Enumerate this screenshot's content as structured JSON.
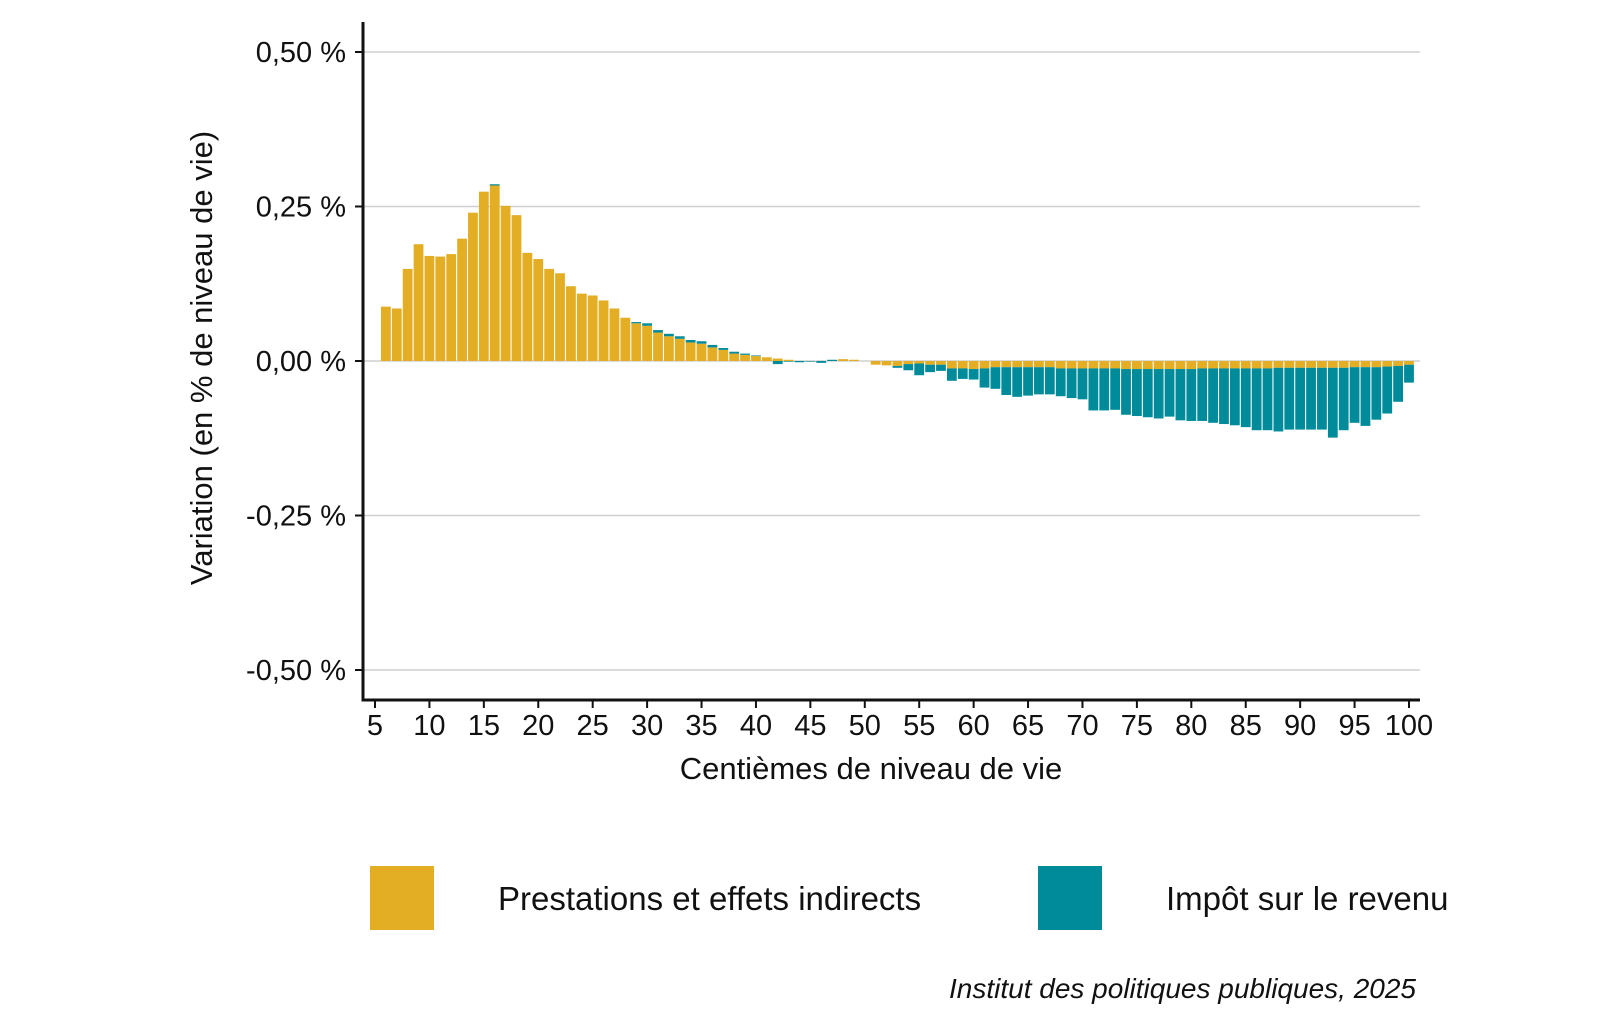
{
  "chart_data": {
    "type": "bar",
    "stacked": true,
    "xlabel": "Centièmes de niveau de vie",
    "ylabel": "Variation (en % de niveau de vie)",
    "ylim": [
      -0.55,
      0.55
    ],
    "yticks": [
      -0.5,
      -0.25,
      0.0,
      0.25,
      0.5
    ],
    "ytick_labels": [
      "-0,50 %",
      "-0,25 %",
      "0,00 %",
      "0,25 %",
      "0,50 %"
    ],
    "xticks": [
      5,
      10,
      15,
      20,
      25,
      30,
      35,
      40,
      45,
      50,
      55,
      60,
      65,
      70,
      75,
      80,
      85,
      90,
      95,
      100
    ],
    "xtick_labels": [
      "5",
      "10",
      "15",
      "20",
      "25",
      "30",
      "35",
      "40",
      "45",
      "50",
      "55",
      "60",
      "65",
      "70",
      "75",
      "80",
      "85",
      "90",
      "95",
      "100"
    ],
    "grid": "horizontal",
    "legend_position": "bottom",
    "caption": "Institut des politiques publiques, 2025",
    "x": [
      5,
      6,
      7,
      8,
      9,
      10,
      11,
      12,
      13,
      14,
      15,
      16,
      17,
      18,
      19,
      20,
      21,
      22,
      23,
      24,
      25,
      26,
      27,
      28,
      29,
      30,
      31,
      32,
      33,
      34,
      35,
      36,
      37,
      38,
      39,
      40,
      41,
      42,
      43,
      44,
      45,
      46,
      47,
      48,
      49,
      50,
      51,
      52,
      53,
      54,
      55,
      56,
      57,
      58,
      59,
      60,
      61,
      62,
      63,
      64,
      65,
      66,
      67,
      68,
      69,
      70,
      71,
      72,
      73,
      74,
      75,
      76,
      77,
      78,
      79,
      80,
      81,
      82,
      83,
      84,
      85,
      86,
      87,
      88,
      89,
      90,
      91,
      92,
      93,
      94,
      95,
      96,
      97,
      98,
      99,
      100
    ],
    "series": [
      {
        "name": "Prestations et effets indirects",
        "color": "#E3AE24",
        "values": [
          0.0,
          0.088,
          0.085,
          0.149,
          0.189,
          0.17,
          0.169,
          0.173,
          0.198,
          0.24,
          0.274,
          0.284,
          0.251,
          0.236,
          0.175,
          0.165,
          0.149,
          0.142,
          0.121,
          0.109,
          0.106,
          0.098,
          0.085,
          0.07,
          0.061,
          0.057,
          0.046,
          0.04,
          0.036,
          0.03,
          0.028,
          0.022,
          0.018,
          0.012,
          0.01,
          0.008,
          0.006,
          0.004,
          0.002,
          0.0,
          0.0,
          0.0,
          0.0,
          0.003,
          0.002,
          0.0,
          -0.006,
          -0.007,
          -0.008,
          -0.005,
          -0.004,
          -0.006,
          -0.006,
          -0.012,
          -0.012,
          -0.013,
          -0.012,
          -0.01,
          -0.01,
          -0.01,
          -0.01,
          -0.01,
          -0.01,
          -0.012,
          -0.012,
          -0.012,
          -0.012,
          -0.012,
          -0.012,
          -0.013,
          -0.013,
          -0.013,
          -0.013,
          -0.013,
          -0.013,
          -0.013,
          -0.012,
          -0.012,
          -0.012,
          -0.012,
          -0.012,
          -0.012,
          -0.012,
          -0.011,
          -0.011,
          -0.011,
          -0.011,
          -0.011,
          -0.011,
          -0.011,
          -0.01,
          -0.01,
          -0.01,
          -0.009,
          -0.008,
          -0.006
        ]
      },
      {
        "name": "Impôt sur le revenu",
        "color": "#008B9A",
        "values": [
          0.0,
          0.0,
          0.0,
          0.0,
          0.0,
          0.0,
          0.0,
          0.0,
          0.0,
          0.0,
          0.0,
          0.002,
          0.0,
          0.0,
          0.0,
          0.0,
          0.0,
          0.0,
          0.0,
          0.0,
          0.0,
          0.0,
          0.0,
          0.0,
          0.002,
          0.004,
          0.004,
          0.004,
          0.004,
          0.004,
          0.004,
          0.004,
          0.003,
          0.003,
          0.002,
          0.001,
          0.0,
          -0.005,
          -0.001,
          -0.002,
          -0.001,
          -0.003,
          0.002,
          0.0,
          0.0,
          0.0,
          0.0,
          0.0,
          -0.003,
          -0.01,
          -0.019,
          -0.012,
          -0.01,
          -0.02,
          -0.017,
          -0.017,
          -0.031,
          -0.035,
          -0.045,
          -0.048,
          -0.046,
          -0.044,
          -0.044,
          -0.045,
          -0.048,
          -0.05,
          -0.068,
          -0.068,
          -0.067,
          -0.074,
          -0.076,
          -0.078,
          -0.08,
          -0.077,
          -0.083,
          -0.084,
          -0.085,
          -0.088,
          -0.09,
          -0.092,
          -0.095,
          -0.1,
          -0.1,
          -0.103,
          -0.1,
          -0.1,
          -0.1,
          -0.1,
          -0.113,
          -0.101,
          -0.09,
          -0.095,
          -0.085,
          -0.076,
          -0.058,
          -0.029
        ]
      }
    ]
  }
}
